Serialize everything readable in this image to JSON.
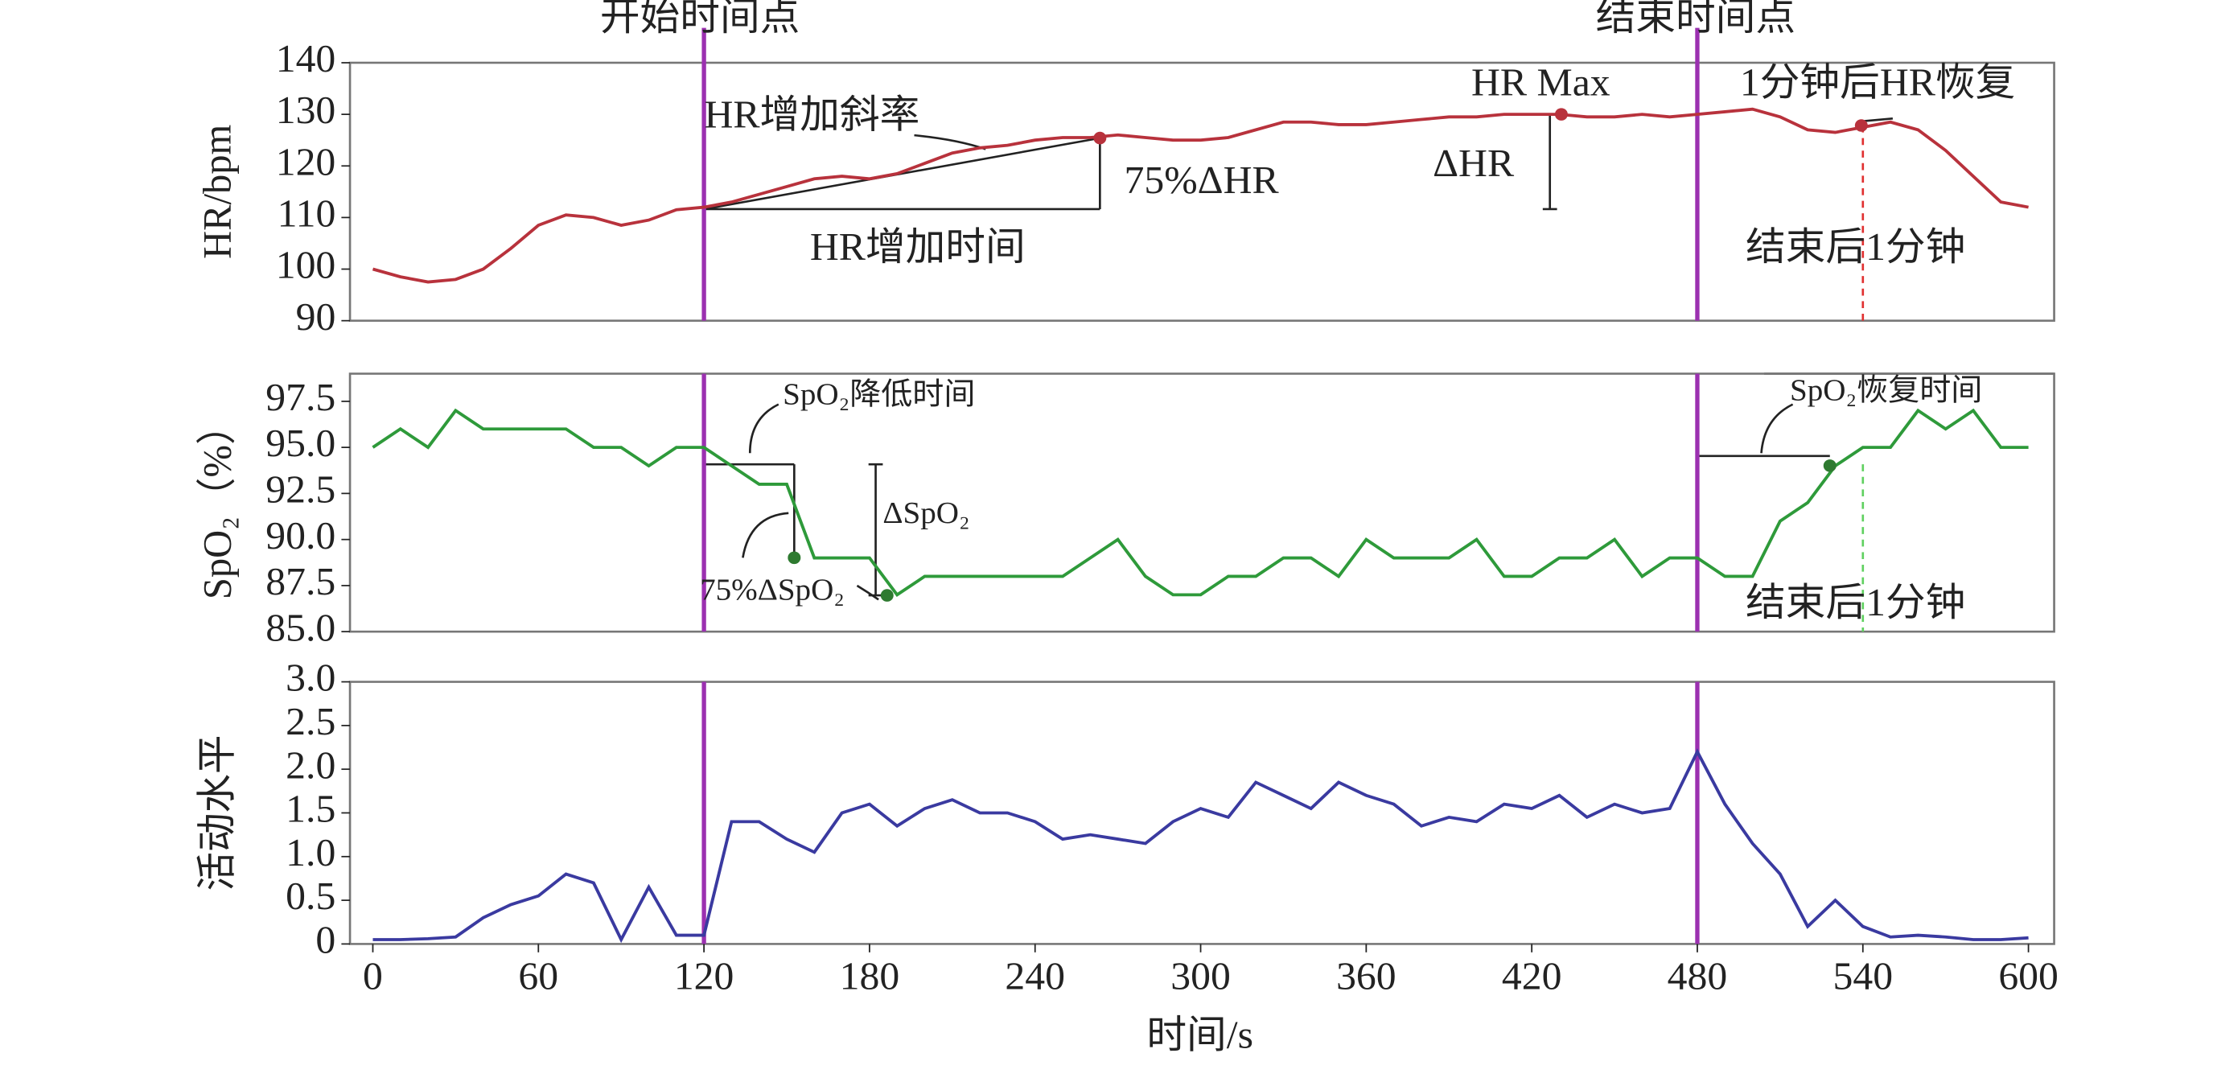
{
  "chart_data": [
    {
      "type": "line",
      "ylabel": "HR/bpm",
      "color": "#b8323c",
      "x": [
        0,
        10,
        20,
        30,
        40,
        50,
        60,
        70,
        80,
        90,
        100,
        110,
        120,
        130,
        140,
        150,
        160,
        170,
        180,
        190,
        200,
        210,
        220,
        230,
        240,
        250,
        260,
        270,
        280,
        290,
        300,
        310,
        320,
        330,
        340,
        350,
        360,
        370,
        380,
        390,
        400,
        410,
        420,
        430,
        440,
        450,
        460,
        470,
        480,
        490,
        500,
        510,
        520,
        530,
        540,
        550,
        560,
        570,
        580,
        590,
        600
      ],
      "values": [
        100,
        98.5,
        97.5,
        98,
        100,
        104,
        108.5,
        110.5,
        110,
        108.5,
        109.5,
        111.5,
        112,
        113,
        114.5,
        116,
        117.5,
        118,
        117.5,
        118.5,
        120.5,
        122.5,
        123.5,
        124,
        125,
        125.5,
        125.5,
        126,
        125.5,
        125,
        125,
        125.5,
        127,
        128.5,
        128.5,
        128,
        128,
        128.5,
        129,
        129.5,
        129.5,
        130,
        130,
        130,
        129.5,
        129.5,
        130,
        129.5,
        130,
        130.5,
        131,
        129.5,
        127,
        126.5,
        127.5,
        128.5,
        127,
        123,
        118,
        113,
        112
      ],
      "ylim": [
        90,
        140
      ],
      "yticks": [
        90,
        100,
        110,
        120,
        130,
        140
      ],
      "vlines": [
        {
          "x": 120,
          "color": "#9b30b0"
        },
        {
          "x": 480,
          "color": "#9b30b0"
        },
        {
          "x": 540,
          "color": "#e03030"
        }
      ],
      "annotations": [
        "开始时间点",
        "结束时间点",
        "HR增加斜率",
        "75%ΔHR",
        "HR增加时间",
        "HR Max",
        "ΔHR",
        "1分钟后HR恢复",
        "结束后1分钟"
      ]
    },
    {
      "type": "line",
      "ylabel": "SpO₂（%）",
      "color": "#2e9a3a",
      "x": [
        0,
        10,
        20,
        30,
        40,
        50,
        60,
        70,
        80,
        90,
        100,
        110,
        120,
        130,
        140,
        150,
        160,
        170,
        180,
        190,
        200,
        210,
        220,
        230,
        240,
        250,
        260,
        270,
        280,
        290,
        300,
        310,
        320,
        330,
        340,
        350,
        360,
        370,
        380,
        390,
        400,
        410,
        420,
        430,
        440,
        450,
        460,
        470,
        480,
        490,
        500,
        510,
        520,
        530,
        540,
        550,
        560,
        570,
        580,
        590,
        600
      ],
      "values": [
        95,
        96,
        95,
        97,
        96,
        96,
        96,
        96,
        95,
        95,
        94,
        95,
        95,
        94,
        93,
        93,
        89,
        89,
        89,
        87,
        88,
        88,
        88,
        88,
        88,
        88,
        89,
        90,
        88,
        87,
        87,
        88,
        88,
        89,
        89,
        88,
        90,
        89,
        89,
        89,
        90,
        88,
        88,
        89,
        89,
        90,
        88,
        89,
        89,
        88,
        88,
        91,
        92,
        94,
        95,
        95,
        97,
        96,
        97,
        95,
        95
      ],
      "ylim": [
        85,
        99
      ],
      "yticks": [
        {
          "value": 85,
          "label": "85.0"
        },
        {
          "value": 87.5,
          "label": "87.5"
        },
        {
          "value": 90,
          "label": "90.0"
        },
        {
          "value": 92.5,
          "label": "92.5"
        },
        {
          "value": 95,
          "label": "95.0"
        },
        {
          "value": 97.5,
          "label": "97.5"
        }
      ],
      "vlines": [
        {
          "x": 120,
          "color": "#9b30b0"
        },
        {
          "x": 480,
          "color": "#9b30b0"
        },
        {
          "x": 540,
          "color": "#60d060"
        }
      ],
      "annotations": [
        "SpO₂降低时间",
        "ΔSpO₂",
        "75%ΔSpO₂",
        "SpO₂恢复时间",
        "结束后1分钟"
      ]
    },
    {
      "type": "line",
      "ylabel": "活动水平",
      "xlabel": "时间/s",
      "color": "#3a3aa0",
      "x": [
        0,
        10,
        20,
        30,
        40,
        50,
        60,
        70,
        80,
        90,
        100,
        110,
        120,
        130,
        140,
        150,
        160,
        170,
        180,
        190,
        200,
        210,
        220,
        230,
        240,
        250,
        260,
        270,
        280,
        290,
        300,
        310,
        320,
        330,
        340,
        350,
        360,
        370,
        380,
        390,
        400,
        410,
        420,
        430,
        440,
        450,
        460,
        470,
        480,
        490,
        500,
        510,
        520,
        530,
        540,
        550,
        560,
        570,
        580,
        590,
        600
      ],
      "values": [
        0.05,
        0.05,
        0.06,
        0.08,
        0.3,
        0.45,
        0.55,
        0.8,
        0.7,
        0.05,
        0.65,
        0.1,
        0.1,
        1.4,
        1.4,
        1.2,
        1.05,
        1.5,
        1.6,
        1.35,
        1.55,
        1.65,
        1.5,
        1.5,
        1.4,
        1.2,
        1.25,
        1.2,
        1.15,
        1.4,
        1.55,
        1.45,
        1.85,
        1.7,
        1.55,
        1.85,
        1.7,
        1.6,
        1.35,
        1.45,
        1.4,
        1.6,
        1.55,
        1.7,
        1.45,
        1.6,
        1.5,
        1.55,
        2.2,
        1.6,
        1.15,
        0.8,
        0.2,
        0.5,
        0.2,
        0.08,
        0.1,
        0.08,
        0.05,
        0.05,
        0.07
      ],
      "ylim": [
        0,
        3
      ],
      "yticks": [
        0,
        0.5,
        {
          "value": 1,
          "label": "1.0"
        },
        1.5,
        {
          "value": 2,
          "label": "2.0"
        },
        2.5,
        {
          "value": 3,
          "label": "3.0"
        }
      ],
      "xlim": [
        0,
        600
      ],
      "xticks": [
        0,
        60,
        120,
        180,
        240,
        300,
        360,
        420,
        480,
        540,
        600
      ],
      "vlines": [
        {
          "x": 120,
          "color": "#9b30b0"
        },
        {
          "x": 480,
          "color": "#9b30b0"
        }
      ],
      "annotations": []
    }
  ]
}
